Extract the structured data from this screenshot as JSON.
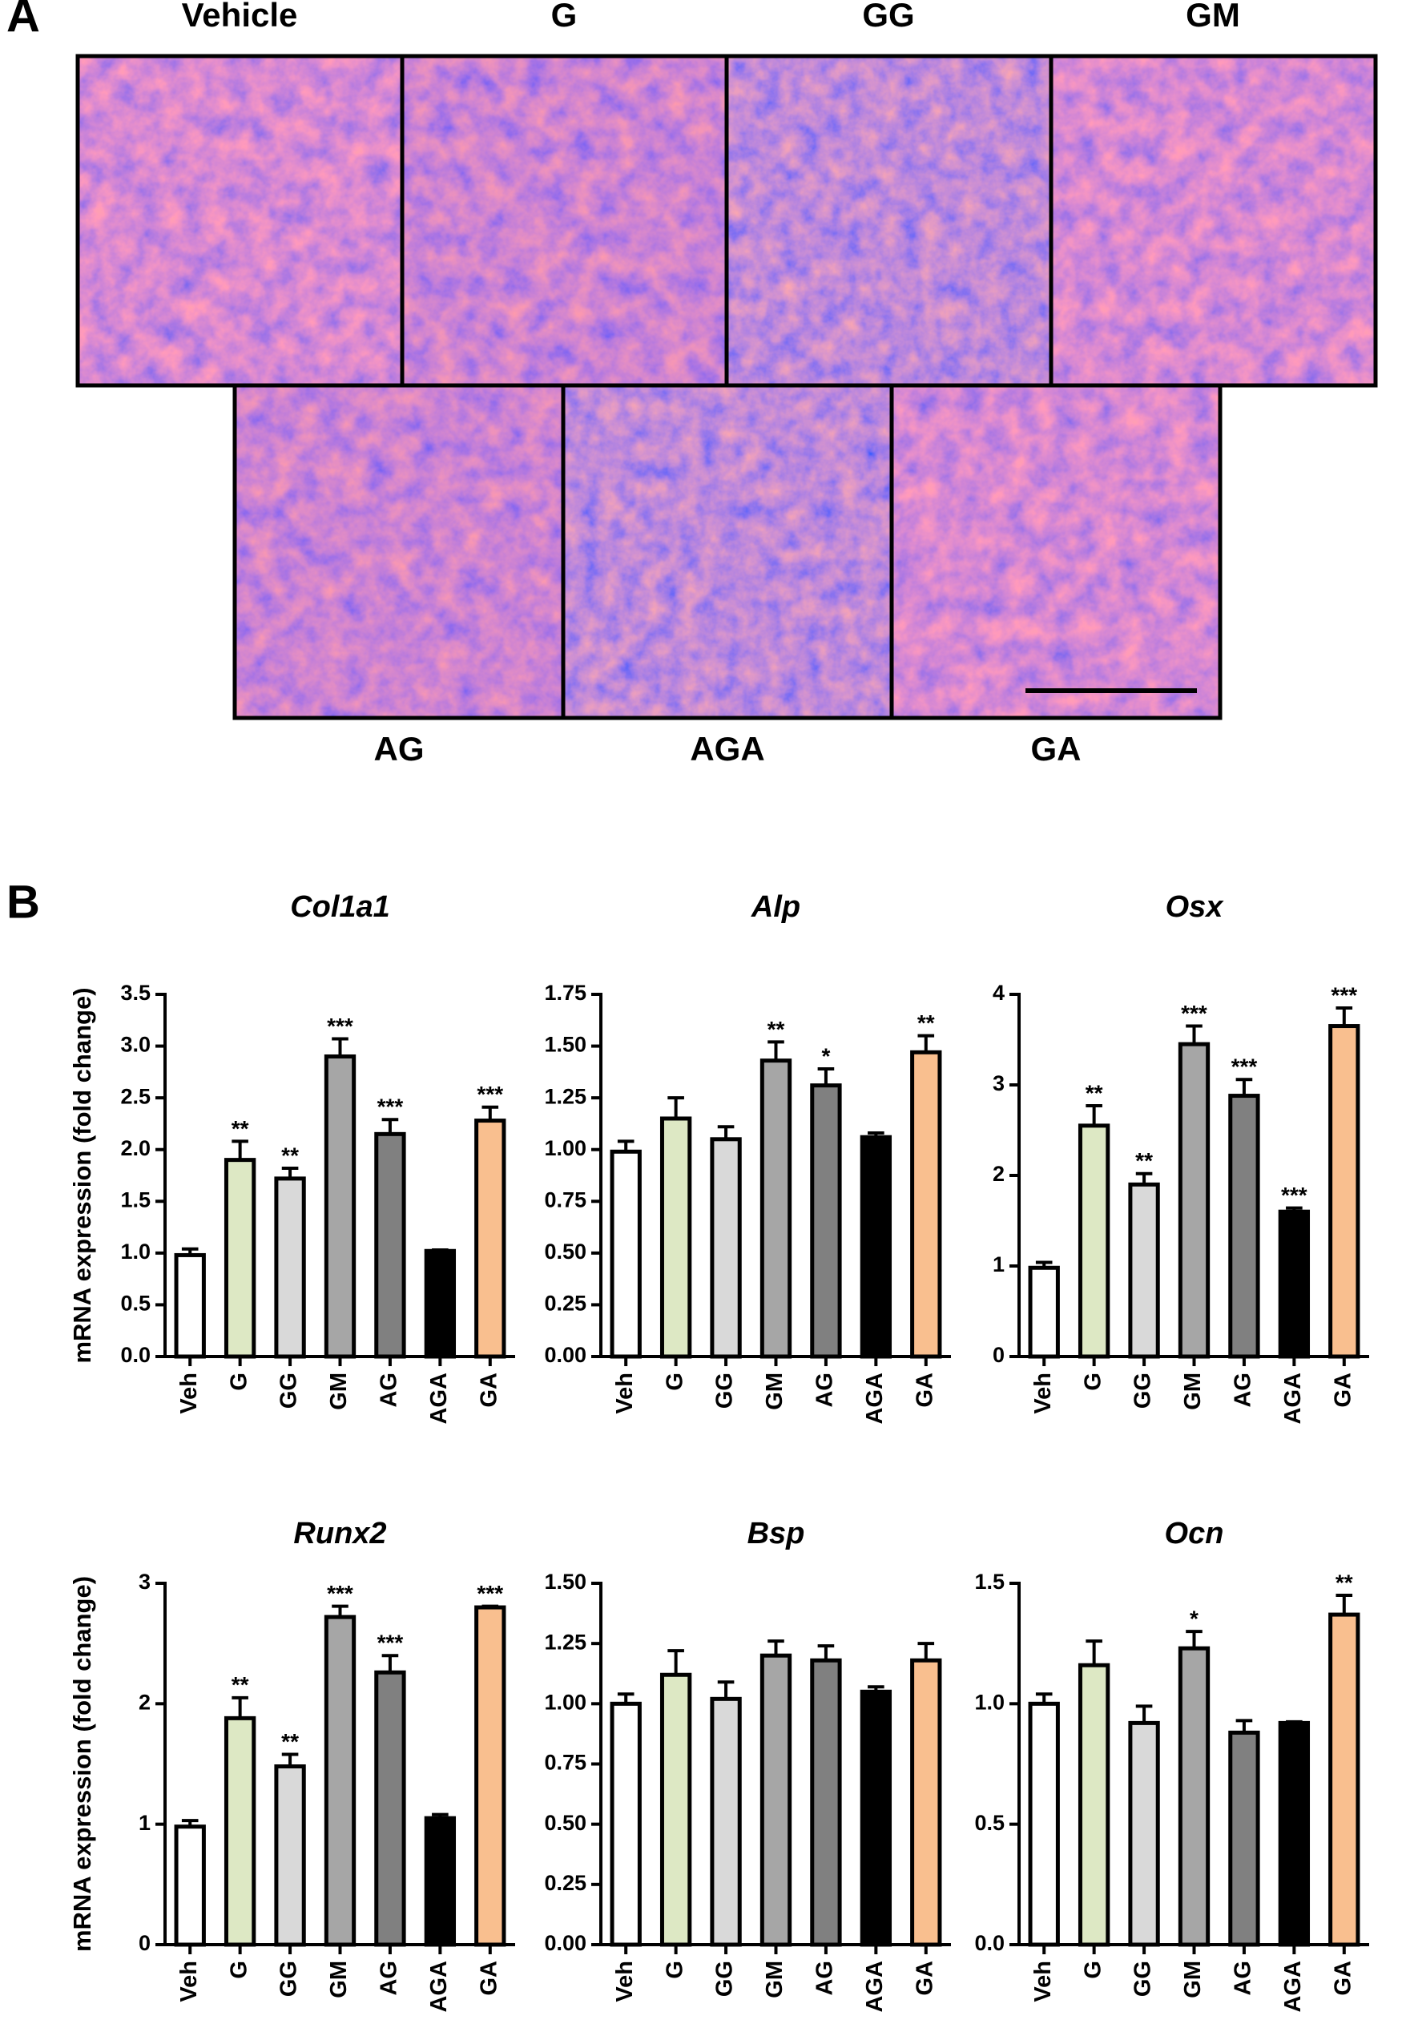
{
  "panel_a": {
    "label": "A",
    "top_labels": [
      "Vehicle",
      "G",
      "GG",
      "GM"
    ],
    "bottom_labels": [
      "AG",
      "AGA",
      "GA"
    ]
  },
  "panel_b": {
    "label": "B"
  },
  "chart_data": [
    {
      "type": "bar",
      "title": "Col1a1",
      "ylabel": "mRNA expression (fold change)",
      "categories": [
        "Veh",
        "G",
        "GG",
        "GM",
        "AG",
        "AGA",
        "GA"
      ],
      "values": [
        0.98,
        1.9,
        1.72,
        2.9,
        2.15,
        1.02,
        2.28
      ],
      "errors": [
        0.06,
        0.18,
        0.1,
        0.17,
        0.14,
        0.01,
        0.13
      ],
      "annotations": [
        null,
        "**",
        "**",
        "***",
        "***",
        null,
        "***"
      ],
      "colors": [
        "#ffffff",
        "#dde8c4",
        "#d9d9d9",
        "#a6a6a6",
        "#808080",
        "#000000",
        "#f9bf8f"
      ],
      "ylim": [
        0,
        3.5
      ],
      "yticks": [
        {
          "value": 0,
          "label": "0.0"
        },
        0.5,
        {
          "value": 1,
          "label": "1.0"
        },
        1.5,
        {
          "value": 2,
          "label": "2.0"
        },
        2.5,
        {
          "value": 3,
          "label": "3.0"
        },
        3.5
      ]
    },
    {
      "type": "bar",
      "title": "Alp",
      "categories": [
        "Veh",
        "G",
        "GG",
        "GM",
        "AG",
        "AGA",
        "GA"
      ],
      "values": [
        0.99,
        1.15,
        1.05,
        1.43,
        1.31,
        1.06,
        1.47
      ],
      "errors": [
        0.05,
        0.1,
        0.06,
        0.09,
        0.08,
        0.02,
        0.08
      ],
      "annotations": [
        null,
        null,
        null,
        "**",
        "*",
        null,
        "**"
      ],
      "colors": [
        "#ffffff",
        "#dde8c4",
        "#d9d9d9",
        "#a6a6a6",
        "#808080",
        "#000000",
        "#f9bf8f"
      ],
      "ylim": [
        0,
        1.75
      ],
      "yticks": [
        {
          "value": 0,
          "label": "0.00"
        },
        0.25,
        {
          "value": 0.5,
          "label": "0.50"
        },
        0.75,
        {
          "value": 1,
          "label": "1.00"
        },
        1.25,
        {
          "value": 1.5,
          "label": "1.50"
        },
        1.75
      ]
    },
    {
      "type": "bar",
      "title": "Osx",
      "categories": [
        "Veh",
        "G",
        "GG",
        "GM",
        "AG",
        "AGA",
        "GA"
      ],
      "values": [
        0.98,
        2.55,
        1.9,
        3.45,
        2.88,
        1.6,
        3.65
      ],
      "errors": [
        0.06,
        0.22,
        0.12,
        0.2,
        0.18,
        0.04,
        0.2
      ],
      "annotations": [
        null,
        "**",
        "**",
        "***",
        "***",
        "***",
        "***"
      ],
      "colors": [
        "#ffffff",
        "#dde8c4",
        "#d9d9d9",
        "#a6a6a6",
        "#808080",
        "#000000",
        "#f9bf8f"
      ],
      "ylim": [
        0,
        4
      ],
      "yticks": [
        0,
        1,
        2,
        3,
        4
      ]
    },
    {
      "type": "bar",
      "title": "Runx2",
      "ylabel": "mRNA expression (fold change)",
      "categories": [
        "Veh",
        "G",
        "GG",
        "GM",
        "AG",
        "AGA",
        "GA"
      ],
      "values": [
        0.98,
        1.88,
        1.48,
        2.72,
        2.26,
        1.05,
        2.8
      ],
      "errors": [
        0.05,
        0.17,
        0.1,
        0.09,
        0.14,
        0.03,
        0.01
      ],
      "annotations": [
        null,
        "**",
        "**",
        "***",
        "***",
        null,
        "***"
      ],
      "colors": [
        "#ffffff",
        "#dde8c4",
        "#d9d9d9",
        "#a6a6a6",
        "#808080",
        "#000000",
        "#f9bf8f"
      ],
      "ylim": [
        0,
        3
      ],
      "yticks": [
        0,
        1,
        2,
        3
      ]
    },
    {
      "type": "bar",
      "title": "Bsp",
      "categories": [
        "Veh",
        "G",
        "GG",
        "GM",
        "AG",
        "AGA",
        "GA"
      ],
      "values": [
        1.0,
        1.12,
        1.02,
        1.2,
        1.18,
        1.05,
        1.18
      ],
      "errors": [
        0.04,
        0.1,
        0.07,
        0.06,
        0.06,
        0.02,
        0.07
      ],
      "colors": [
        "#ffffff",
        "#dde8c4",
        "#d9d9d9",
        "#a6a6a6",
        "#808080",
        "#000000",
        "#f9bf8f"
      ],
      "ylim": [
        0,
        1.5
      ],
      "yticks": [
        {
          "value": 0,
          "label": "0.00"
        },
        0.25,
        {
          "value": 0.5,
          "label": "0.50"
        },
        0.75,
        {
          "value": 1,
          "label": "1.00"
        },
        1.25,
        {
          "value": 1.5,
          "label": "1.50"
        }
      ]
    },
    {
      "type": "bar",
      "title": "Ocn",
      "categories": [
        "Veh",
        "G",
        "GG",
        "GM",
        "AG",
        "AGA",
        "GA"
      ],
      "values": [
        1.0,
        1.16,
        0.92,
        1.23,
        0.88,
        0.92,
        1.37
      ],
      "errors": [
        0.04,
        0.1,
        0.07,
        0.07,
        0.05,
        0.005,
        0.08
      ],
      "annotations": [
        null,
        null,
        null,
        "*",
        null,
        null,
        "**"
      ],
      "colors": [
        "#ffffff",
        "#dde8c4",
        "#d9d9d9",
        "#a6a6a6",
        "#808080",
        "#000000",
        "#f9bf8f"
      ],
      "ylim": [
        0,
        1.5
      ],
      "yticks": [
        {
          "value": 0,
          "label": "0.0"
        },
        0.5,
        {
          "value": 1,
          "label": "1.0"
        },
        1.5
      ]
    }
  ]
}
